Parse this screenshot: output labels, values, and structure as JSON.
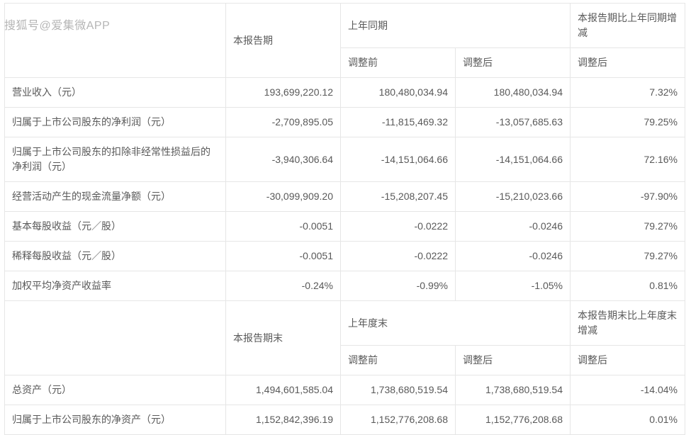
{
  "watermark": "搜狐号@爱集微APP",
  "headers_top": {
    "col1": "本报告期",
    "col2": "上年同期",
    "col3": "本报告期比上年同期增减"
  },
  "headers_sub": {
    "pre": "调整前",
    "post": "调整后"
  },
  "rows": [
    {
      "label": "营业收入（元）",
      "a": "193,699,220.12",
      "b": "180,480,034.94",
      "c": "180,480,034.94",
      "d": "7.32%"
    },
    {
      "label": "归属于上市公司股东的净利润（元）",
      "a": "-2,709,895.05",
      "b": "-11,815,469.32",
      "c": "-13,057,685.63",
      "d": "79.25%"
    },
    {
      "label": "归属于上市公司股东的扣除非经常性损益后的净利润（元）",
      "a": "-3,940,306.64",
      "b": "-14,151,064.66",
      "c": "-14,151,064.66",
      "d": "72.16%"
    },
    {
      "label": "经营活动产生的现金流量净额（元）",
      "a": "-30,099,909.20",
      "b": "-15,208,207.45",
      "c": "-15,210,023.66",
      "d": "-97.90%"
    },
    {
      "label": "基本每股收益（元／股）",
      "a": "-0.0051",
      "b": "-0.0222",
      "c": "-0.0246",
      "d": "79.27%"
    },
    {
      "label": "稀释每股收益（元／股）",
      "a": "-0.0051",
      "b": "-0.0222",
      "c": "-0.0246",
      "d": "79.27%"
    },
    {
      "label": "加权平均净资产收益率",
      "a": "-0.24%",
      "b": "-0.99%",
      "c": "-1.05%",
      "d": "0.81%"
    }
  ],
  "headers_bottom": {
    "col1": "本报告期末",
    "col2": "上年度末",
    "col3": "本报告期末比上年度末增减"
  },
  "rows2": [
    {
      "label": "总资产（元）",
      "a": "1,494,601,585.04",
      "b": "1,738,680,519.54",
      "c": "1,738,680,519.54",
      "d": "-14.04%"
    },
    {
      "label": "归属于上市公司股东的净资产（元）",
      "a": "1,152,842,396.19",
      "b": "1,152,776,208.68",
      "c": "1,152,776,208.68",
      "d": "0.01%"
    }
  ],
  "style": {
    "border_color": "#e6e6e6",
    "text_color": "#595959",
    "font_size": 14,
    "background": "#ffffff"
  }
}
